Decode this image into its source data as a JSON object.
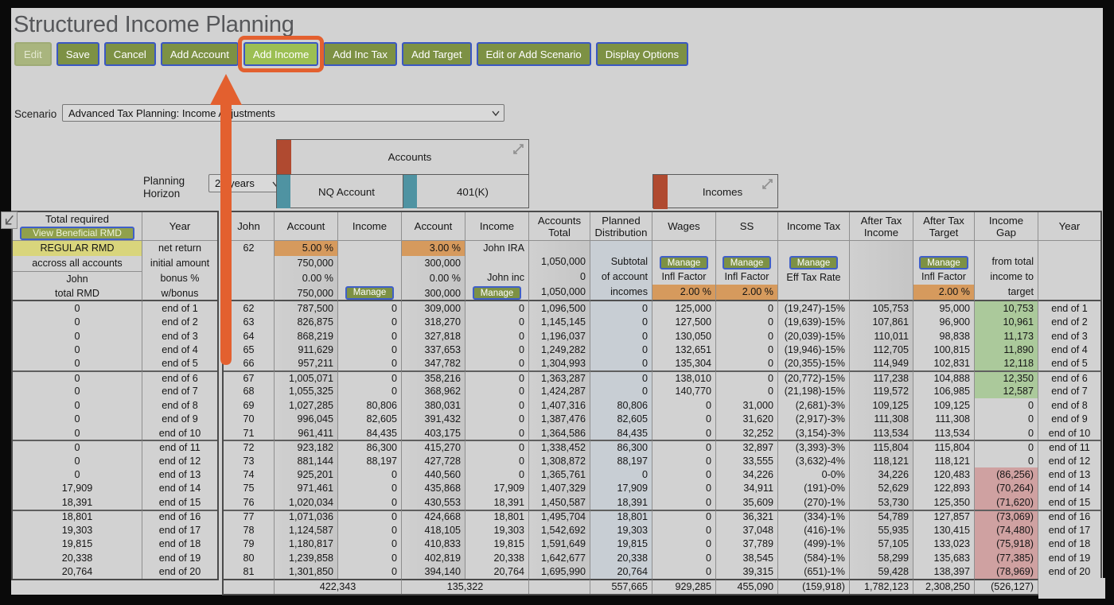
{
  "title": "Structured Income Planning",
  "toolbar": {
    "buttons": [
      {
        "label": "Edit",
        "disabled": true
      },
      {
        "label": "Save"
      },
      {
        "label": "Cancel"
      },
      {
        "label": "Add Account"
      },
      {
        "label": "Add Income",
        "highlighted": true
      },
      {
        "label": "Add Inc Tax"
      },
      {
        "label": "Add Target"
      },
      {
        "label": "Edit or Add Scenario"
      },
      {
        "label": "Display Options"
      }
    ]
  },
  "scenario": {
    "label": "Scenario",
    "value": "Advanced Tax Planning: Income Adjustments"
  },
  "planning_horizon": {
    "label_line1": "Planning",
    "label_line2": "Horizon",
    "value": "20 years"
  },
  "accounts_panel": {
    "title": "Accounts",
    "groups": [
      "NQ Account",
      "401(K)"
    ]
  },
  "incomes_panel": {
    "title": "Incomes"
  },
  "colors": {
    "highlight_orange": "#e3602f",
    "button_green": "#7d9144",
    "button_active_green": "#9cbf53",
    "panel_red_bar": "#b04a30",
    "panel_teal_bar": "#4f93a2",
    "cell_orange": "#d69a5d",
    "cell_yellow": "#d9d57c",
    "gap_positive_green": "#abc99b",
    "gap_negative_pink": "#cfa1a1"
  },
  "rmd_table": {
    "header_title": "Total required",
    "header_button": "View Beneficial RMD",
    "year_header": "Year",
    "setup_lines": [
      "REGULAR RMD",
      "accross all accounts",
      "John",
      "total RMD"
    ],
    "setup_year_lines": [
      "net return",
      "initial amount",
      "bonus %",
      "w/bonus"
    ],
    "rows": [
      {
        "rmd": "0",
        "year": "end of 1"
      },
      {
        "rmd": "0",
        "year": "end of 2"
      },
      {
        "rmd": "0",
        "year": "end of 3"
      },
      {
        "rmd": "0",
        "year": "end of 4"
      },
      {
        "rmd": "0",
        "year": "end of 5"
      },
      {
        "rmd": "0",
        "year": "end of 6"
      },
      {
        "rmd": "0",
        "year": "end of 7"
      },
      {
        "rmd": "0",
        "year": "end of 8"
      },
      {
        "rmd": "0",
        "year": "end of 9"
      },
      {
        "rmd": "0",
        "year": "end of 10"
      },
      {
        "rmd": "0",
        "year": "end of 11"
      },
      {
        "rmd": "0",
        "year": "end of 12"
      },
      {
        "rmd": "0",
        "year": "end of 13"
      },
      {
        "rmd": "17,909",
        "year": "end of 14"
      },
      {
        "rmd": "18,391",
        "year": "end of 15"
      },
      {
        "rmd": "18,801",
        "year": "end of 16"
      },
      {
        "rmd": "19,303",
        "year": "end of 17"
      },
      {
        "rmd": "19,815",
        "year": "end of 18"
      },
      {
        "rmd": "20,338",
        "year": "end of 19"
      },
      {
        "rmd": "20,764",
        "year": "end of 20"
      }
    ]
  },
  "main_table": {
    "headers": [
      "John",
      "Account",
      "Income",
      "Account",
      "Income",
      "Accounts Total",
      "Planned Distribution",
      "Wages",
      "SS",
      "Income Tax",
      "After Tax Income",
      "After Tax Target",
      "Income Gap",
      "Year"
    ],
    "setup": [
      [
        {
          "t": "62",
          "a": "c"
        },
        null,
        null,
        null
      ],
      [
        {
          "t": "5.00 %",
          "bg": "o"
        },
        {
          "t": "750,000"
        },
        {
          "t": "0.00 %"
        },
        {
          "t": "750,000"
        }
      ],
      [
        null,
        null,
        null,
        {
          "t": "Manage",
          "btn": true
        }
      ],
      [
        {
          "t": "3.00 %",
          "bg": "o"
        },
        {
          "t": "300,000"
        },
        {
          "t": "0.00 %"
        },
        {
          "t": "300,000"
        }
      ],
      [
        {
          "t": "John IRA"
        },
        null,
        {
          "t": "John inc"
        },
        {
          "t": "Manage",
          "btn": true
        }
      ],
      [
        null,
        {
          "t": "1,050,000"
        },
        {
          "t": "0"
        },
        {
          "t": "1,050,000"
        }
      ],
      [
        null,
        {
          "t": "Subtotal"
        },
        {
          "t": "of account"
        },
        {
          "t": "incomes"
        }
      ],
      [
        null,
        {
          "t": "Manage",
          "btn": true
        },
        {
          "t": "Infl Factor",
          "a": "c"
        },
        {
          "t": "2.00 %",
          "bg": "o"
        }
      ],
      [
        null,
        {
          "t": "Manage",
          "btn": true
        },
        {
          "t": "Infl Factor",
          "a": "c"
        },
        {
          "t": "2.00 %",
          "bg": "o"
        }
      ],
      [
        null,
        {
          "t": "Manage",
          "btn": true
        },
        {
          "t": "Eff Tax Rate",
          "a": "c"
        },
        null
      ],
      [
        null,
        null,
        null,
        null
      ],
      [
        null,
        {
          "t": "Manage",
          "btn": true
        },
        {
          "t": "Infl Factor",
          "a": "c"
        },
        {
          "t": "2.00 %",
          "bg": "o"
        }
      ],
      [
        null,
        {
          "t": "from total"
        },
        {
          "t": "income to"
        },
        {
          "t": "target"
        }
      ],
      [
        null,
        null,
        null,
        null
      ]
    ],
    "rows": [
      [
        "62",
        "787,500",
        "0",
        "309,000",
        "0",
        "1,096,500",
        "0",
        "125,000",
        "0",
        "(19,247)-15%",
        "105,753",
        "95,000",
        "10,753",
        "end of 1"
      ],
      [
        "63",
        "826,875",
        "0",
        "318,270",
        "0",
        "1,145,145",
        "0",
        "127,500",
        "0",
        "(19,639)-15%",
        "107,861",
        "96,900",
        "10,961",
        "end of 2"
      ],
      [
        "64",
        "868,219",
        "0",
        "327,818",
        "0",
        "1,196,037",
        "0",
        "130,050",
        "0",
        "(20,039)-15%",
        "110,011",
        "98,838",
        "11,173",
        "end of 3"
      ],
      [
        "65",
        "911,629",
        "0",
        "337,653",
        "0",
        "1,249,282",
        "0",
        "132,651",
        "0",
        "(19,946)-15%",
        "112,705",
        "100,815",
        "11,890",
        "end of 4"
      ],
      [
        "66",
        "957,211",
        "0",
        "347,782",
        "0",
        "1,304,993",
        "0",
        "135,304",
        "0",
        "(20,355)-15%",
        "114,949",
        "102,831",
        "12,118",
        "end of 5"
      ],
      [
        "67",
        "1,005,071",
        "0",
        "358,216",
        "0",
        "1,363,287",
        "0",
        "138,010",
        "0",
        "(20,772)-15%",
        "117,238",
        "104,888",
        "12,350",
        "end of 6"
      ],
      [
        "68",
        "1,055,325",
        "0",
        "368,962",
        "0",
        "1,424,287",
        "0",
        "140,770",
        "0",
        "(21,198)-15%",
        "119,572",
        "106,985",
        "12,587",
        "end of 7"
      ],
      [
        "69",
        "1,027,285",
        "80,806",
        "380,031",
        "0",
        "1,407,316",
        "80,806",
        "0",
        "31,000",
        "(2,681)-3%",
        "109,125",
        "109,125",
        "0",
        "end of 8"
      ],
      [
        "70",
        "996,045",
        "82,605",
        "391,432",
        "0",
        "1,387,476",
        "82,605",
        "0",
        "31,620",
        "(2,917)-3%",
        "111,308",
        "111,308",
        "0",
        "end of 9"
      ],
      [
        "71",
        "961,411",
        "84,435",
        "403,175",
        "0",
        "1,364,586",
        "84,435",
        "0",
        "32,252",
        "(3,154)-3%",
        "113,534",
        "113,534",
        "0",
        "end of 10"
      ],
      [
        "72",
        "923,182",
        "86,300",
        "415,270",
        "0",
        "1,338,452",
        "86,300",
        "0",
        "32,897",
        "(3,393)-3%",
        "115,804",
        "115,804",
        "0",
        "end of 11"
      ],
      [
        "73",
        "881,144",
        "88,197",
        "427,728",
        "0",
        "1,308,872",
        "88,197",
        "0",
        "33,555",
        "(3,632)-4%",
        "118,121",
        "118,121",
        "0",
        "end of 12"
      ],
      [
        "74",
        "925,201",
        "0",
        "440,560",
        "0",
        "1,365,761",
        "0",
        "0",
        "34,226",
        "0-0%",
        "34,226",
        "120,483",
        "(86,256)",
        "end of 13"
      ],
      [
        "75",
        "971,461",
        "0",
        "435,868",
        "17,909",
        "1,407,329",
        "17,909",
        "0",
        "34,911",
        "(191)-0%",
        "52,629",
        "122,893",
        "(70,264)",
        "end of 14"
      ],
      [
        "76",
        "1,020,034",
        "0",
        "430,553",
        "18,391",
        "1,450,587",
        "18,391",
        "0",
        "35,609",
        "(270)-1%",
        "53,730",
        "125,350",
        "(71,620)",
        "end of 15"
      ],
      [
        "77",
        "1,071,036",
        "0",
        "424,668",
        "18,801",
        "1,495,704",
        "18,801",
        "0",
        "36,321",
        "(334)-1%",
        "54,789",
        "127,857",
        "(73,069)",
        "end of 16"
      ],
      [
        "78",
        "1,124,587",
        "0",
        "418,105",
        "19,303",
        "1,542,692",
        "19,303",
        "0",
        "37,048",
        "(416)-1%",
        "55,935",
        "130,415",
        "(74,480)",
        "end of 17"
      ],
      [
        "79",
        "1,180,817",
        "0",
        "410,833",
        "19,815",
        "1,591,649",
        "19,815",
        "0",
        "37,789",
        "(499)-1%",
        "57,105",
        "133,023",
        "(75,918)",
        "end of 18"
      ],
      [
        "80",
        "1,239,858",
        "0",
        "402,819",
        "20,338",
        "1,642,677",
        "20,338",
        "0",
        "38,545",
        "(584)-1%",
        "58,299",
        "135,683",
        "(77,385)",
        "end of 19"
      ],
      [
        "81",
        "1,301,850",
        "0",
        "394,140",
        "20,764",
        "1,695,990",
        "20,764",
        "0",
        "39,315",
        "(651)-1%",
        "59,428",
        "138,397",
        "(78,969)",
        "end of 20"
      ]
    ],
    "totals": {
      "nq_income": "422,343",
      "k401_income": "135,322",
      "planned_distribution": "557,665",
      "wages": "929,285",
      "ss": "455,090",
      "income_tax": "(159,918)",
      "after_tax_income": "1,782,123",
      "after_tax_target": "2,308,250",
      "income_gap": "(526,127)"
    }
  }
}
